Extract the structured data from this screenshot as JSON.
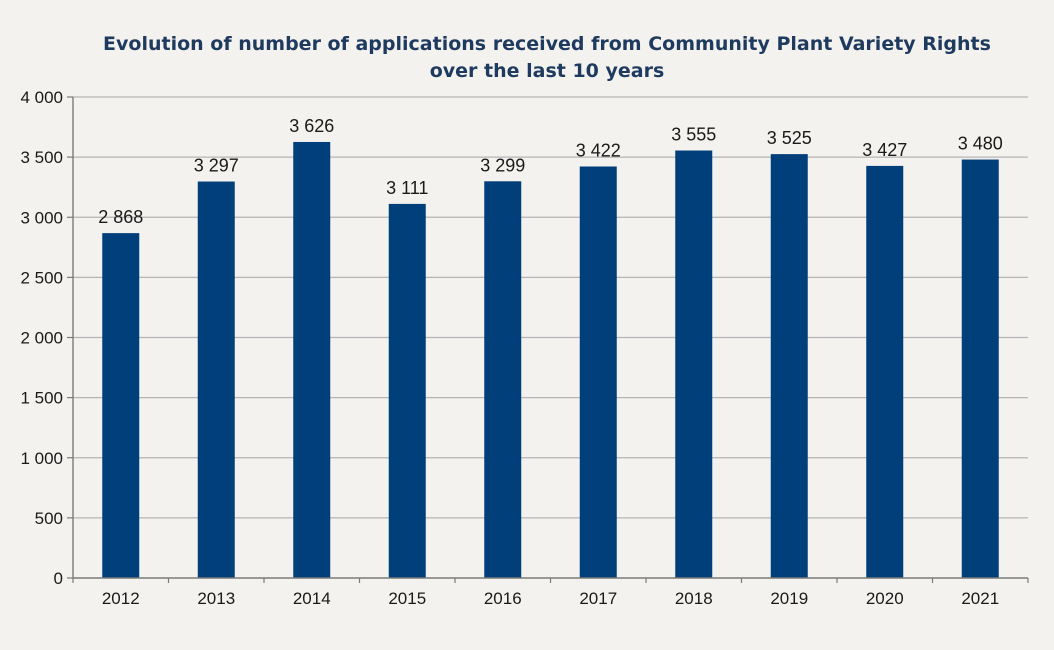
{
  "chart_data": {
    "type": "bar",
    "title_lines": [
      "Evolution of number of applications received from Community Plant Variety Rights",
      "over the last 10 years"
    ],
    "categories": [
      "2012",
      "2013",
      "2014",
      "2015",
      "2016",
      "2017",
      "2018",
      "2019",
      "2020",
      "2021"
    ],
    "values": [
      2868,
      3297,
      3626,
      3111,
      3299,
      3422,
      3555,
      3525,
      3427,
      3480
    ],
    "value_labels": [
      "2 868",
      "3 297",
      "3 626",
      "3 111",
      "3 299",
      "3 422",
      "3 555",
      "3 525",
      "3 427",
      "3 480"
    ],
    "y_ticks": [
      0,
      500,
      1000,
      1500,
      2000,
      2500,
      3000,
      3500,
      4000
    ],
    "y_tick_labels": [
      "0",
      "500",
      "1 000",
      "1 500",
      "2 000",
      "2 500",
      "3 000",
      "3 500",
      "4 000"
    ],
    "ylim": [
      0,
      4000
    ],
    "xlabel": "",
    "ylabel": "",
    "grid": true,
    "bar_color": "#003f7a",
    "grid_color": "#b5b5b5",
    "axis_color": "#7a7a7a"
  }
}
